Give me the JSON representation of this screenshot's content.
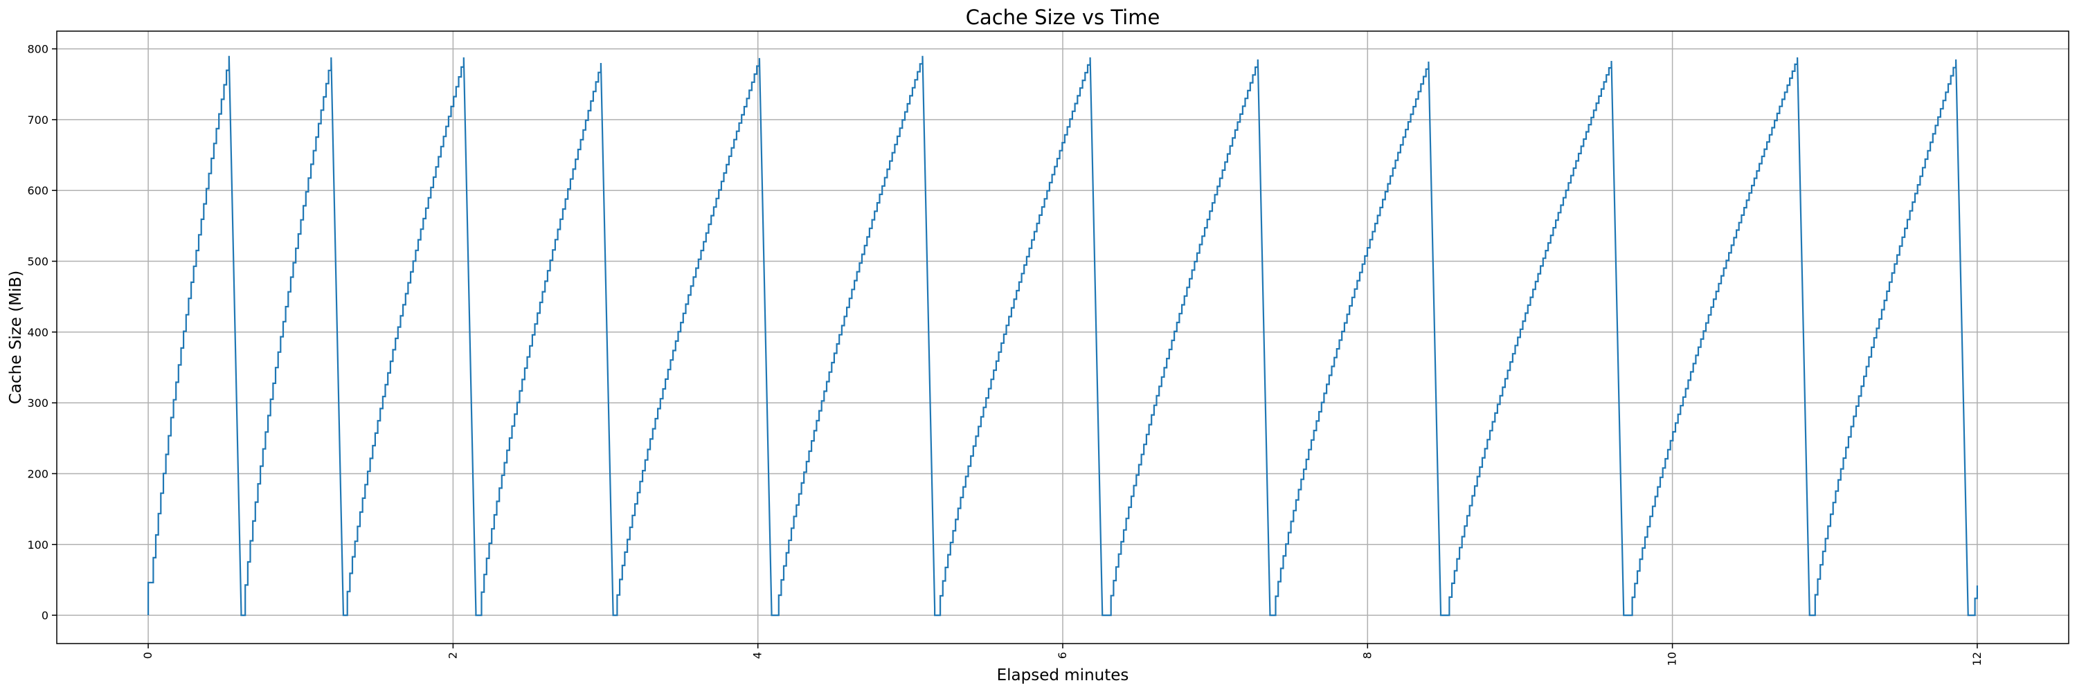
{
  "chart_data": {
    "type": "line",
    "title": "Cache Size vs Time",
    "xlabel": "Elapsed minutes",
    "ylabel": "Cache Size (MiB)",
    "xlim": [
      -0.6,
      12.6
    ],
    "ylim": [
      -40,
      825
    ],
    "xticks": [
      0,
      2,
      4,
      6,
      8,
      10,
      12
    ],
    "yticks": [
      0,
      100,
      200,
      300,
      400,
      500,
      600,
      700,
      800
    ],
    "grid": true,
    "x_tick_rotation": 90,
    "series": [
      {
        "color": "#1f77b4",
        "cycles": [
          {
            "start": 0.0,
            "end": 0.53,
            "peak": 790,
            "drop_to": 5
          },
          {
            "start": 0.62,
            "end": 1.2,
            "peak": 788,
            "drop_to": 3
          },
          {
            "start": 1.29,
            "end": 2.07,
            "peak": 788,
            "drop_to": 5
          },
          {
            "start": 2.17,
            "end": 2.97,
            "peak": 780,
            "drop_to": 2
          },
          {
            "start": 3.06,
            "end": 4.01,
            "peak": 787,
            "drop_to": 4
          },
          {
            "start": 4.12,
            "end": 5.08,
            "peak": 790,
            "drop_to": 10
          },
          {
            "start": 5.18,
            "end": 6.18,
            "peak": 788,
            "drop_to": 3
          },
          {
            "start": 6.3,
            "end": 7.28,
            "peak": 785,
            "drop_to": 3
          },
          {
            "start": 7.38,
            "end": 8.4,
            "peak": 782,
            "drop_to": 4
          },
          {
            "start": 8.52,
            "end": 9.6,
            "peak": 783,
            "drop_to": 3
          },
          {
            "start": 9.72,
            "end": 10.82,
            "peak": 788,
            "drop_to": 3
          },
          {
            "start": 10.92,
            "end": 11.86,
            "peak": 785,
            "drop_to": 2
          },
          {
            "start": 11.97,
            "end": 12.0,
            "peak": 42,
            "drop_to": null
          }
        ]
      }
    ]
  }
}
